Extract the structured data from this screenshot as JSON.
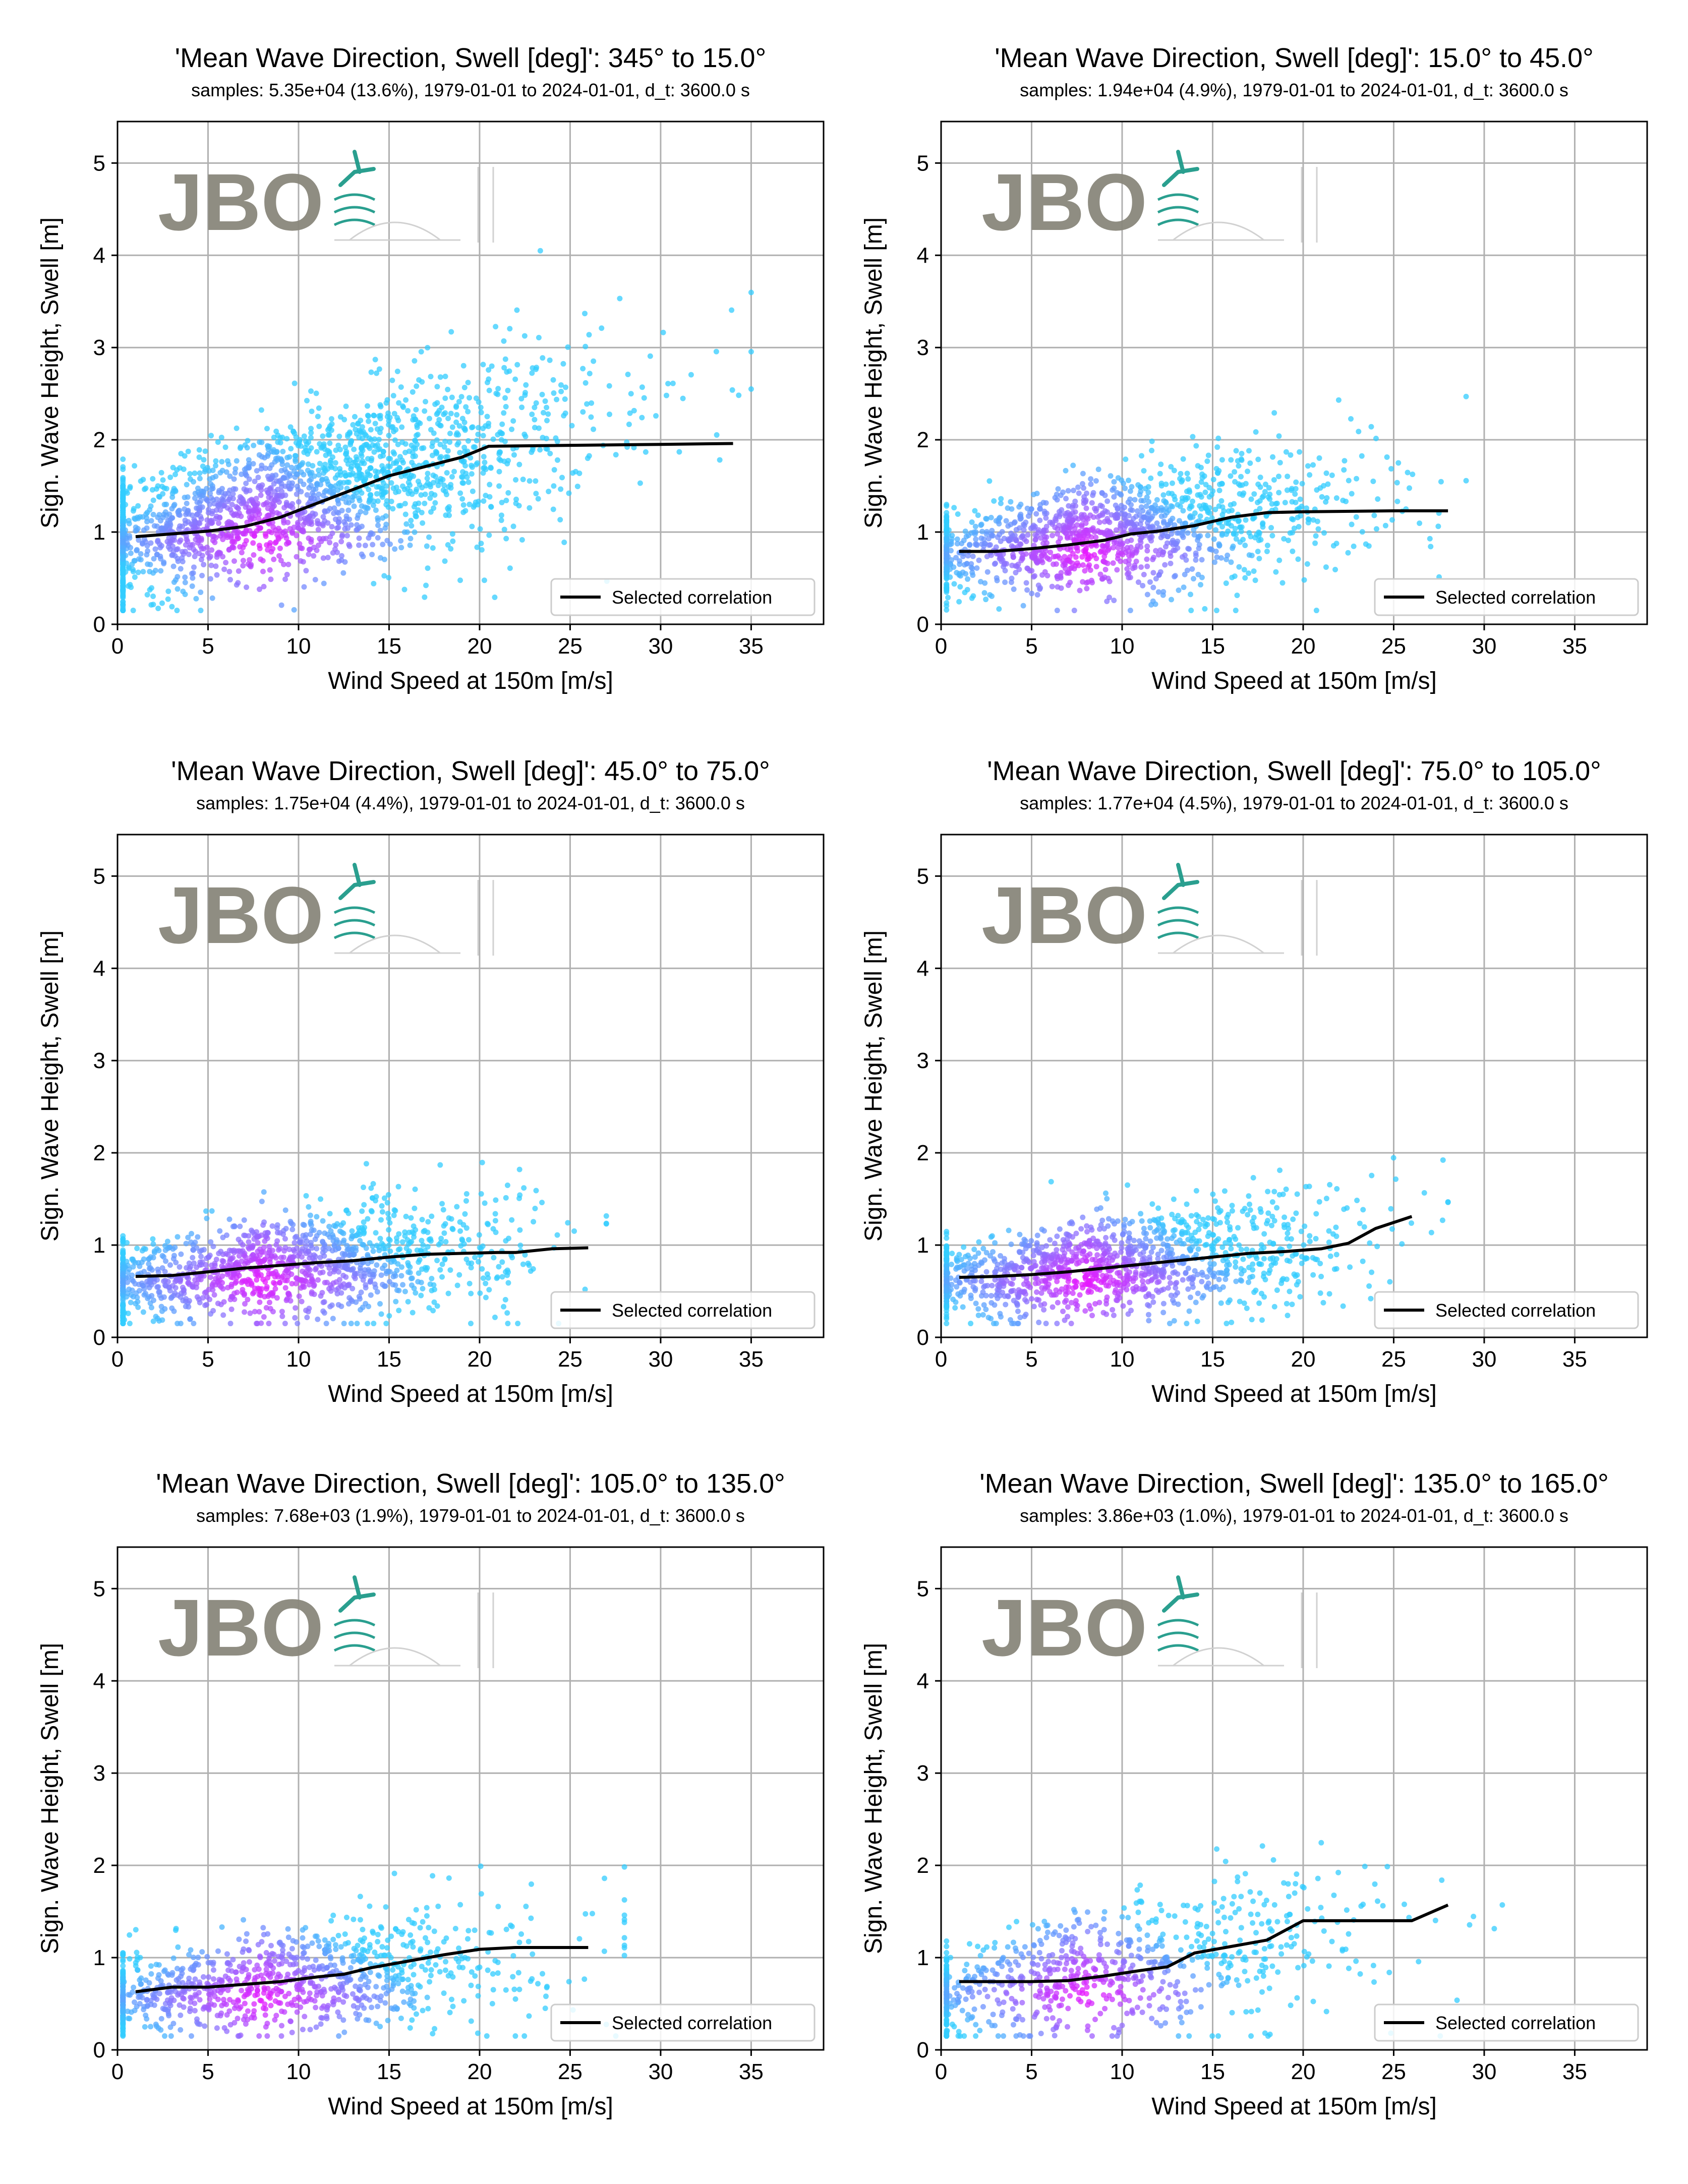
{
  "figure": {
    "xlabel": "Wind Speed at 150m [m/s]",
    "ylabel": "Sign. Wave Height, Swell [m]",
    "legend_label": "Selected correlation",
    "logo_text": "JBO",
    "xticks": [
      0,
      5,
      10,
      15,
      20,
      25,
      30,
      35
    ],
    "yticks": [
      0,
      1,
      2,
      3,
      4,
      5
    ],
    "xlim": [
      0,
      39
    ],
    "ylim": [
      0,
      5.45
    ],
    "colors": {
      "scatter_low": "#33ccff",
      "scatter_high": "#ff00ff",
      "line": "#000000",
      "grid": "#b0b0b0",
      "logo_text": "#8a877c",
      "logo_accent": "#1f9a8a"
    }
  },
  "chart_data": [
    {
      "type": "scatter",
      "title": "'Mean Wave Direction, Swell [deg]': 345° to 15.0°",
      "subtitle": "samples: 5.35e+04 (13.6%), 1979-01-01 to 2024-01-01, d_t: 3600.0 s",
      "xlabel": "Wind Speed at 150m [m/s]",
      "ylabel": "Sign. Wave Height, Swell [m]",
      "xlim": [
        0,
        39
      ],
      "ylim": [
        0,
        5.45
      ],
      "grid": true,
      "legend": "lower-right",
      "scatter": {
        "x_max": 33,
        "base": 0.9,
        "slope": 0.05,
        "spread": 0.45,
        "points": 2200
      },
      "series": [
        {
          "name": "Selected correlation",
          "x": [
            1,
            3,
            5,
            7,
            9,
            11,
            13,
            15,
            17,
            19,
            20.5,
            25,
            30,
            34
          ],
          "y": [
            0.95,
            0.98,
            1.01,
            1.06,
            1.16,
            1.31,
            1.46,
            1.61,
            1.71,
            1.81,
            1.93,
            1.94,
            1.95,
            1.96
          ]
        }
      ]
    },
    {
      "type": "scatter",
      "title": "'Mean Wave Direction, Swell [deg]': 15.0° to 45.0°",
      "subtitle": "samples: 1.94e+04 (4.9%), 1979-01-01 to 2024-01-01, d_t: 3600.0 s",
      "xlabel": "Wind Speed at 150m [m/s]",
      "ylabel": "Sign. Wave Height, Swell [m]",
      "xlim": [
        0,
        39
      ],
      "ylim": [
        0,
        5.45
      ],
      "grid": true,
      "legend": "lower-right",
      "scatter": {
        "x_max": 27,
        "base": 0.75,
        "slope": 0.025,
        "spread": 0.32,
        "points": 1400
      },
      "series": [
        {
          "name": "Selected correlation",
          "x": [
            1,
            3,
            5,
            7,
            9,
            10.5,
            12,
            14,
            16,
            18,
            20,
            25,
            28
          ],
          "y": [
            0.79,
            0.79,
            0.82,
            0.86,
            0.91,
            0.98,
            1.01,
            1.07,
            1.16,
            1.21,
            1.22,
            1.23,
            1.23
          ]
        }
      ]
    },
    {
      "type": "scatter",
      "title": "'Mean Wave Direction, Swell [deg]': 45.0° to 75.0°",
      "subtitle": "samples: 1.75e+04 (4.4%), 1979-01-01 to 2024-01-01, d_t: 3600.0 s",
      "xlabel": "Wind Speed at 150m [m/s]",
      "ylabel": "Sign. Wave Height, Swell [m]",
      "xlim": [
        0,
        39
      ],
      "ylim": [
        0,
        5.45
      ],
      "grid": true,
      "legend": "lower-right",
      "scatter": {
        "x_max": 25,
        "base": 0.6,
        "slope": 0.018,
        "spread": 0.3,
        "points": 1300
      },
      "series": [
        {
          "name": "Selected correlation",
          "x": [
            1,
            3,
            5,
            7,
            9,
            11,
            13,
            15,
            17,
            19,
            21,
            22,
            24,
            26
          ],
          "y": [
            0.66,
            0.67,
            0.71,
            0.75,
            0.78,
            0.81,
            0.83,
            0.87,
            0.9,
            0.91,
            0.92,
            0.92,
            0.96,
            0.97
          ]
        }
      ]
    },
    {
      "type": "scatter",
      "title": "'Mean Wave Direction, Swell [deg]': 75.0° to 105.0°",
      "subtitle": "samples: 1.77e+04 (4.5%), 1979-01-01 to 2024-01-01, d_t: 3600.0 s",
      "xlabel": "Wind Speed at 150m [m/s]",
      "ylabel": "Sign. Wave Height, Swell [m]",
      "xlim": [
        0,
        39
      ],
      "ylim": [
        0,
        5.45
      ],
      "grid": true,
      "legend": "lower-right",
      "scatter": {
        "x_max": 26,
        "base": 0.6,
        "slope": 0.02,
        "spread": 0.3,
        "points": 1300
      },
      "series": [
        {
          "name": "Selected correlation",
          "x": [
            1,
            3,
            5,
            7,
            9,
            11,
            13,
            15,
            17,
            19,
            21,
            22.5,
            24,
            26
          ],
          "y": [
            0.65,
            0.66,
            0.68,
            0.71,
            0.75,
            0.79,
            0.83,
            0.87,
            0.91,
            0.93,
            0.96,
            1.02,
            1.18,
            1.31
          ]
        }
      ]
    },
    {
      "type": "scatter",
      "title": "'Mean Wave Direction, Swell [deg]': 105.0° to 135.0°",
      "subtitle": "samples: 7.68e+03 (1.9%), 1979-01-01 to 2024-01-01, d_t: 3600.0 s",
      "xlabel": "Wind Speed at 150m [m/s]",
      "ylabel": "Sign. Wave Height, Swell [m]",
      "xlim": [
        0,
        39
      ],
      "ylim": [
        0,
        5.45
      ],
      "grid": true,
      "legend": "lower-right",
      "scatter": {
        "x_max": 26,
        "base": 0.55,
        "slope": 0.022,
        "spread": 0.3,
        "points": 1000
      },
      "series": [
        {
          "name": "Selected correlation",
          "x": [
            1,
            3,
            5,
            7,
            9,
            11,
            12.5,
            14,
            16,
            18,
            20,
            22,
            26
          ],
          "y": [
            0.63,
            0.68,
            0.68,
            0.71,
            0.74,
            0.79,
            0.82,
            0.89,
            0.96,
            1.03,
            1.09,
            1.11,
            1.11
          ]
        }
      ]
    },
    {
      "type": "scatter",
      "title": "'Mean Wave Direction, Swell [deg]': 135.0° to 165.0°",
      "subtitle": "samples: 3.86e+03 (1.0%), 1979-01-01 to 2024-01-01, d_t: 3600.0 s",
      "xlabel": "Wind Speed at 150m [m/s]",
      "ylabel": "Sign. Wave Height, Swell [m]",
      "xlim": [
        0,
        39
      ],
      "ylim": [
        0,
        5.45
      ],
      "grid": true,
      "legend": "lower-right",
      "scatter": {
        "x_max": 29,
        "base": 0.6,
        "slope": 0.03,
        "spread": 0.38,
        "points": 800
      },
      "series": [
        {
          "name": "Selected correlation",
          "x": [
            1,
            3,
            5,
            7,
            9,
            11,
            12.5,
            14,
            16,
            18,
            20,
            22,
            24,
            26,
            28
          ],
          "y": [
            0.74,
            0.74,
            0.74,
            0.75,
            0.8,
            0.86,
            0.9,
            1.05,
            1.12,
            1.19,
            1.4,
            1.4,
            1.4,
            1.4,
            1.57
          ]
        }
      ]
    }
  ]
}
